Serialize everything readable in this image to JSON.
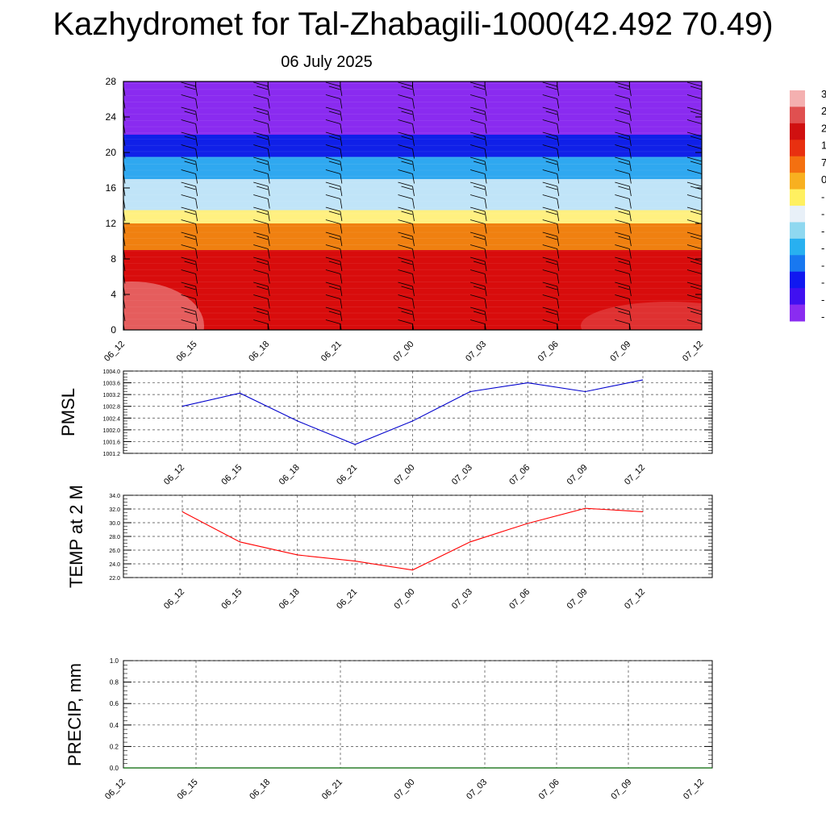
{
  "title": "Kazhydromet for Tal-Zhabagili-1000(42.492 70.49)",
  "subtitle": "06 July 2025",
  "chart_data": [
    {
      "type": "heatmap",
      "xticks": [
        "06_12",
        "06_15",
        "06_18",
        "06_21",
        "07_00",
        "07_03",
        "07_06",
        "07_09",
        "07_12"
      ],
      "ylim": [
        0,
        28
      ],
      "yticks": [
        0,
        4,
        8,
        12,
        16,
        20,
        24,
        28
      ],
      "colorbar_labels": [
        "3",
        "2",
        "2",
        "1",
        "7",
        "0",
        "-",
        "-",
        "-",
        "-",
        "-",
        "-",
        "-",
        "-"
      ],
      "colorbar_colors": [
        "#f4b0b0",
        "#e05050",
        "#d01010",
        "#e83010",
        "#f47010",
        "#f8b020",
        "#fff060",
        "#e8f0f8",
        "#8fd8f0",
        "#28b0f0",
        "#1878f0",
        "#1018f0",
        "#4010f0",
        "#8a2cf0"
      ],
      "bands": [
        {
          "from": 0,
          "to": 9,
          "color": "#d80c0c"
        },
        {
          "from": 9,
          "to": 12,
          "color": "#f08010"
        },
        {
          "from": 12,
          "to": 13.5,
          "color": "#fff080"
        },
        {
          "from": 13.5,
          "to": 17,
          "color": "#c0e4f8"
        },
        {
          "from": 17,
          "to": 19.5,
          "color": "#30a8f0"
        },
        {
          "from": 19.5,
          "to": 22,
          "color": "#1020e8"
        },
        {
          "from": 22,
          "to": 28,
          "color": "#8a2cf0"
        }
      ]
    },
    {
      "type": "line",
      "ylabel": "PMSL",
      "ylim": [
        1001.2,
        1004.0
      ],
      "yticks": [
        "1001.2",
        "1001.6",
        "1002.0",
        "1002.4",
        "1002.8",
        "1003.2",
        "1003.6",
        "1004.0"
      ],
      "x": [
        "06_12",
        "06_15",
        "06_18",
        "06_21",
        "07_00",
        "07_03",
        "07_06",
        "07_09",
        "07_12"
      ],
      "values": [
        1002.8,
        1003.25,
        1002.3,
        1001.5,
        1002.3,
        1003.3,
        1003.6,
        1003.3,
        1003.7
      ],
      "color": "#0000cc"
    },
    {
      "type": "line",
      "ylabel": "TEMP at 2 M",
      "ylim": [
        22.0,
        34.0
      ],
      "yticks": [
        "22.0",
        "24.0",
        "26.0",
        "28.0",
        "30.0",
        "32.0",
        "34.0"
      ],
      "x": [
        "06_12",
        "06_15",
        "06_18",
        "06_21",
        "07_00",
        "07_03",
        "07_06",
        "07_09",
        "07_12"
      ],
      "values": [
        31.6,
        27.2,
        25.3,
        24.4,
        23.1,
        27.2,
        29.9,
        32.1,
        31.6
      ],
      "color": "#ff0000"
    },
    {
      "type": "line",
      "ylabel": "PRECIP, mm",
      "ylim": [
        0.0,
        1.0
      ],
      "yticks": [
        "0.0",
        "0.2",
        "0.4",
        "0.6",
        "0.8",
        "1.0"
      ],
      "x": [
        "06_12",
        "06_15",
        "06_18",
        "06_21",
        "07_00",
        "07_03",
        "07_06",
        "07_09",
        "07_12"
      ],
      "values": [
        0,
        0,
        0,
        0,
        0,
        0,
        0,
        0,
        0
      ],
      "color": "#006400"
    }
  ]
}
